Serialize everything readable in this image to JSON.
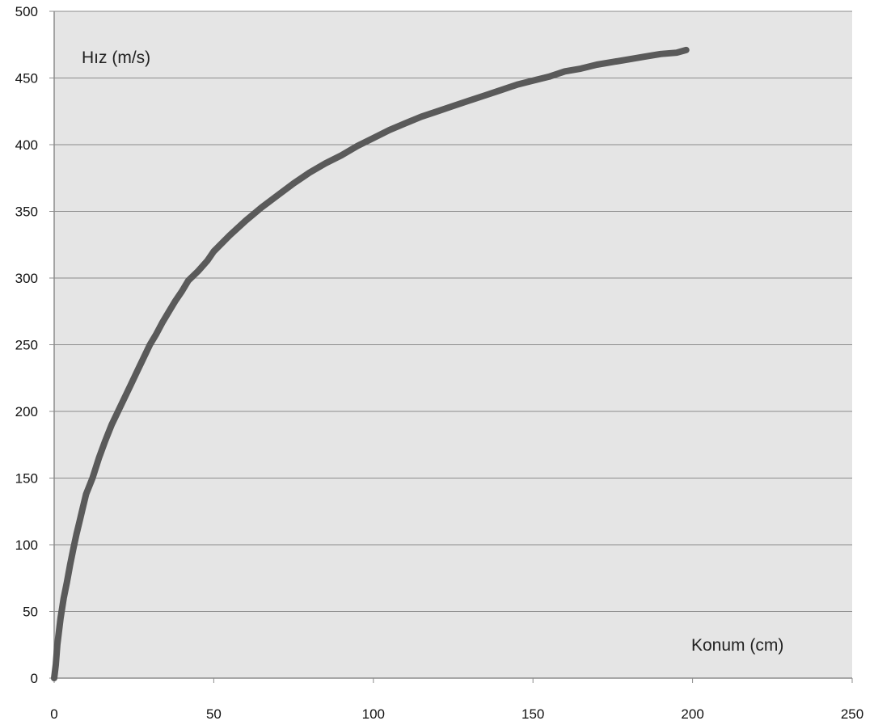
{
  "chart_data": {
    "type": "line",
    "xlabel": "Konum (cm)",
    "ylabel": "Hız (m/s)",
    "xlim": [
      0,
      250
    ],
    "ylim": [
      0,
      500
    ],
    "x_ticks": [
      "0",
      "50",
      "100",
      "150",
      "200",
      "250"
    ],
    "y_ticks": [
      "0",
      "50",
      "100",
      "150",
      "200",
      "250",
      "300",
      "350",
      "400",
      "450",
      "500"
    ],
    "grid": "horizontal",
    "legend": "none",
    "colors": {
      "plot_area": "#e5e5e5",
      "grid": "#8c8c8c",
      "series": "#5a5a5a"
    },
    "series": [
      {
        "x": [
          0,
          0.5,
          1,
          2,
          3,
          4,
          5,
          6,
          7,
          8,
          9,
          10,
          12,
          14,
          16,
          18,
          20,
          22,
          24,
          26,
          28,
          30,
          32,
          34,
          36,
          38,
          40,
          42,
          45,
          48,
          50,
          55,
          60,
          65,
          70,
          75,
          80,
          85,
          90,
          95,
          100,
          105,
          110,
          115,
          120,
          125,
          130,
          135,
          140,
          145,
          150,
          155,
          160,
          165,
          170,
          175,
          180,
          185,
          190,
          195,
          198
        ],
        "y": [
          0,
          10,
          25,
          45,
          60,
          72,
          85,
          97,
          108,
          118,
          128,
          138,
          150,
          165,
          178,
          190,
          200,
          210,
          220,
          230,
          240,
          250,
          258,
          267,
          275,
          283,
          290,
          298,
          305,
          313,
          320,
          332,
          343,
          353,
          362,
          371,
          379,
          386,
          392,
          399,
          405,
          411,
          416,
          421,
          425,
          429,
          433,
          437,
          441,
          445,
          448,
          451,
          455,
          457,
          460,
          462,
          464,
          466,
          468,
          469,
          471
        ]
      }
    ]
  }
}
